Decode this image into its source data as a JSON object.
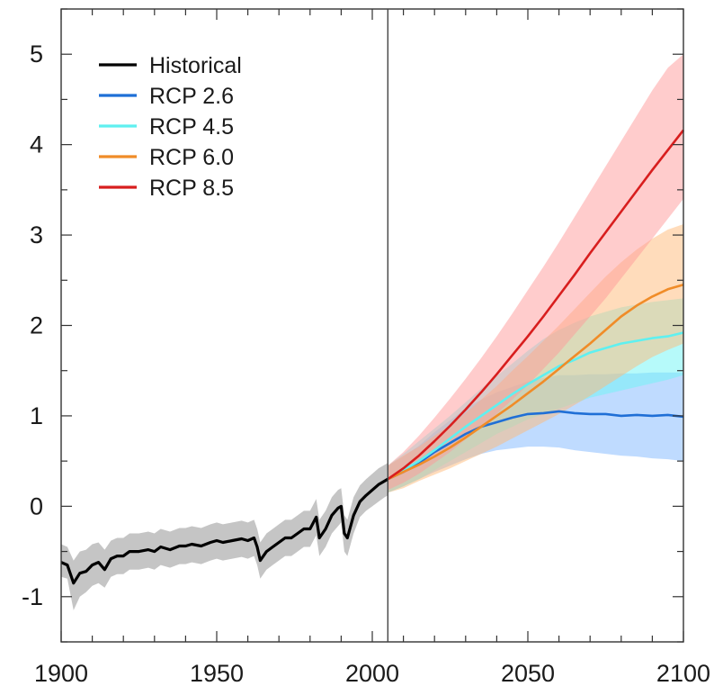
{
  "chart_data": {
    "type": "line",
    "title": "",
    "xlabel": "",
    "ylabel": "",
    "xlim": [
      1900,
      2100
    ],
    "ylim": [
      -1.5,
      5.5
    ],
    "x_ticks": [
      1900,
      1950,
      2000,
      2050,
      2100
    ],
    "y_ticks": [
      -1,
      0,
      1,
      2,
      3,
      4,
      5
    ],
    "x_tick_labels": [
      "1900",
      "1950",
      "2000",
      "2050",
      "2100"
    ],
    "y_tick_labels": [
      "-1",
      "0",
      "1",
      "2",
      "3",
      "4",
      "5"
    ],
    "vertical_line_x": 2005,
    "legend_position": "top-left",
    "series": [
      {
        "name": "Historical",
        "color": "#000000",
        "band_color": "#8c8c8c",
        "x": [
          1900,
          1902,
          1904,
          1906,
          1908,
          1910,
          1912,
          1914,
          1916,
          1918,
          1920,
          1922,
          1925,
          1928,
          1930,
          1932,
          1935,
          1938,
          1940,
          1942,
          1945,
          1948,
          1950,
          1952,
          1955,
          1958,
          1960,
          1962,
          1963,
          1964,
          1966,
          1968,
          1970,
          1972,
          1974,
          1976,
          1978,
          1980,
          1982,
          1983,
          1985,
          1987,
          1989,
          1990,
          1991,
          1992,
          1994,
          1996,
          1998,
          2000,
          2002,
          2004,
          2005
        ],
        "y": [
          -0.62,
          -0.65,
          -0.85,
          -0.74,
          -0.72,
          -0.65,
          -0.62,
          -0.7,
          -0.58,
          -0.55,
          -0.55,
          -0.5,
          -0.5,
          -0.48,
          -0.5,
          -0.45,
          -0.48,
          -0.44,
          -0.44,
          -0.42,
          -0.44,
          -0.4,
          -0.38,
          -0.4,
          -0.38,
          -0.36,
          -0.38,
          -0.35,
          -0.45,
          -0.6,
          -0.5,
          -0.45,
          -0.4,
          -0.35,
          -0.35,
          -0.3,
          -0.25,
          -0.25,
          -0.12,
          -0.35,
          -0.25,
          -0.1,
          -0.02,
          0.0,
          -0.3,
          -0.35,
          -0.1,
          0.05,
          0.12,
          0.18,
          0.24,
          0.28,
          0.3
        ],
        "lower": [
          -0.78,
          -0.8,
          -1.15,
          -1.0,
          -0.95,
          -0.88,
          -0.85,
          -0.9,
          -0.78,
          -0.75,
          -0.75,
          -0.7,
          -0.7,
          -0.68,
          -0.7,
          -0.65,
          -0.68,
          -0.64,
          -0.64,
          -0.62,
          -0.64,
          -0.6,
          -0.58,
          -0.6,
          -0.58,
          -0.56,
          -0.58,
          -0.55,
          -0.65,
          -0.8,
          -0.7,
          -0.65,
          -0.6,
          -0.55,
          -0.55,
          -0.5,
          -0.45,
          -0.45,
          -0.32,
          -0.55,
          -0.45,
          -0.3,
          -0.22,
          -0.18,
          -0.5,
          -0.55,
          -0.3,
          -0.12,
          -0.05,
          0.0,
          0.05,
          0.1,
          0.12
        ],
        "upper": [
          -0.42,
          -0.45,
          -0.6,
          -0.5,
          -0.48,
          -0.42,
          -0.4,
          -0.48,
          -0.38,
          -0.35,
          -0.35,
          -0.3,
          -0.3,
          -0.28,
          -0.3,
          -0.25,
          -0.28,
          -0.24,
          -0.24,
          -0.22,
          -0.24,
          -0.2,
          -0.18,
          -0.2,
          -0.18,
          -0.16,
          -0.18,
          -0.15,
          -0.25,
          -0.4,
          -0.3,
          -0.25,
          -0.2,
          -0.15,
          -0.15,
          -0.1,
          -0.05,
          -0.05,
          0.08,
          -0.15,
          -0.05,
          0.1,
          0.18,
          0.2,
          -0.1,
          -0.15,
          0.1,
          0.23,
          0.3,
          0.36,
          0.42,
          0.46,
          0.48
        ]
      },
      {
        "name": "RCP 2.6",
        "color": "#1f6fd6",
        "band_color": "#7fb8ff",
        "x": [
          2005,
          2010,
          2015,
          2020,
          2025,
          2030,
          2035,
          2040,
          2045,
          2050,
          2055,
          2060,
          2065,
          2070,
          2075,
          2080,
          2085,
          2090,
          2095,
          2100
        ],
        "y": [
          0.3,
          0.38,
          0.48,
          0.6,
          0.7,
          0.8,
          0.88,
          0.93,
          0.98,
          1.02,
          1.03,
          1.05,
          1.03,
          1.02,
          1.02,
          1.0,
          1.01,
          1.0,
          1.01,
          0.99
        ],
        "lower": [
          0.15,
          0.22,
          0.3,
          0.38,
          0.45,
          0.52,
          0.58,
          0.62,
          0.64,
          0.66,
          0.66,
          0.65,
          0.62,
          0.6,
          0.58,
          0.56,
          0.55,
          0.53,
          0.52,
          0.5
        ],
        "upper": [
          0.45,
          0.55,
          0.67,
          0.82,
          0.95,
          1.08,
          1.18,
          1.26,
          1.32,
          1.38,
          1.42,
          1.45,
          1.45,
          1.46,
          1.46,
          1.47,
          1.47,
          1.48,
          1.48,
          1.48
        ]
      },
      {
        "name": "RCP 4.5",
        "color": "#5ff0f0",
        "band_color": "#6ef6f6",
        "x": [
          2005,
          2010,
          2015,
          2020,
          2025,
          2030,
          2035,
          2040,
          2045,
          2050,
          2055,
          2060,
          2065,
          2070,
          2075,
          2080,
          2085,
          2090,
          2095,
          2100
        ],
        "y": [
          0.3,
          0.4,
          0.5,
          0.62,
          0.75,
          0.88,
          1.0,
          1.12,
          1.24,
          1.35,
          1.45,
          1.55,
          1.62,
          1.7,
          1.75,
          1.8,
          1.83,
          1.86,
          1.88,
          1.92
        ],
        "lower": [
          0.15,
          0.22,
          0.3,
          0.4,
          0.5,
          0.6,
          0.7,
          0.8,
          0.88,
          0.96,
          1.02,
          1.08,
          1.14,
          1.2,
          1.24,
          1.28,
          1.32,
          1.36,
          1.4,
          1.45
        ],
        "upper": [
          0.45,
          0.58,
          0.72,
          0.86,
          1.0,
          1.15,
          1.3,
          1.44,
          1.58,
          1.72,
          1.85,
          1.95,
          2.03,
          2.1,
          2.15,
          2.2,
          2.23,
          2.26,
          2.28,
          2.3
        ]
      },
      {
        "name": "RCP 6.0",
        "color": "#f08c28",
        "band_color": "#ffb978",
        "x": [
          2005,
          2010,
          2015,
          2020,
          2025,
          2030,
          2035,
          2040,
          2045,
          2050,
          2055,
          2060,
          2065,
          2070,
          2075,
          2080,
          2085,
          2090,
          2095,
          2100
        ],
        "y": [
          0.3,
          0.38,
          0.46,
          0.55,
          0.65,
          0.76,
          0.88,
          1.0,
          1.12,
          1.25,
          1.38,
          1.52,
          1.66,
          1.8,
          1.95,
          2.1,
          2.22,
          2.32,
          2.4,
          2.45
        ],
        "lower": [
          0.15,
          0.2,
          0.28,
          0.35,
          0.42,
          0.5,
          0.58,
          0.66,
          0.75,
          0.84,
          0.93,
          1.02,
          1.12,
          1.22,
          1.33,
          1.44,
          1.55,
          1.65,
          1.73,
          1.8
        ],
        "upper": [
          0.45,
          0.56,
          0.66,
          0.78,
          0.9,
          1.03,
          1.18,
          1.33,
          1.5,
          1.66,
          1.83,
          2.0,
          2.18,
          2.36,
          2.54,
          2.7,
          2.84,
          2.96,
          3.06,
          3.12
        ]
      },
      {
        "name": "RCP 8.5",
        "color": "#d81e1e",
        "band_color": "#ff9a9a",
        "x": [
          2005,
          2010,
          2015,
          2020,
          2025,
          2030,
          2035,
          2040,
          2045,
          2050,
          2055,
          2060,
          2065,
          2070,
          2075,
          2080,
          2085,
          2090,
          2095,
          2100
        ],
        "y": [
          0.3,
          0.42,
          0.56,
          0.72,
          0.89,
          1.07,
          1.26,
          1.46,
          1.67,
          1.88,
          2.1,
          2.33,
          2.56,
          2.8,
          3.03,
          3.26,
          3.49,
          3.72,
          3.94,
          4.16
        ],
        "lower": [
          0.18,
          0.26,
          0.36,
          0.48,
          0.6,
          0.74,
          0.88,
          1.02,
          1.18,
          1.34,
          1.52,
          1.7,
          1.9,
          2.1,
          2.3,
          2.52,
          2.74,
          2.96,
          3.18,
          3.4
        ],
        "upper": [
          0.45,
          0.6,
          0.78,
          0.98,
          1.19,
          1.41,
          1.64,
          1.88,
          2.13,
          2.39,
          2.65,
          2.92,
          3.2,
          3.48,
          3.76,
          4.04,
          4.32,
          4.6,
          4.85,
          5.0
        ]
      }
    ]
  }
}
